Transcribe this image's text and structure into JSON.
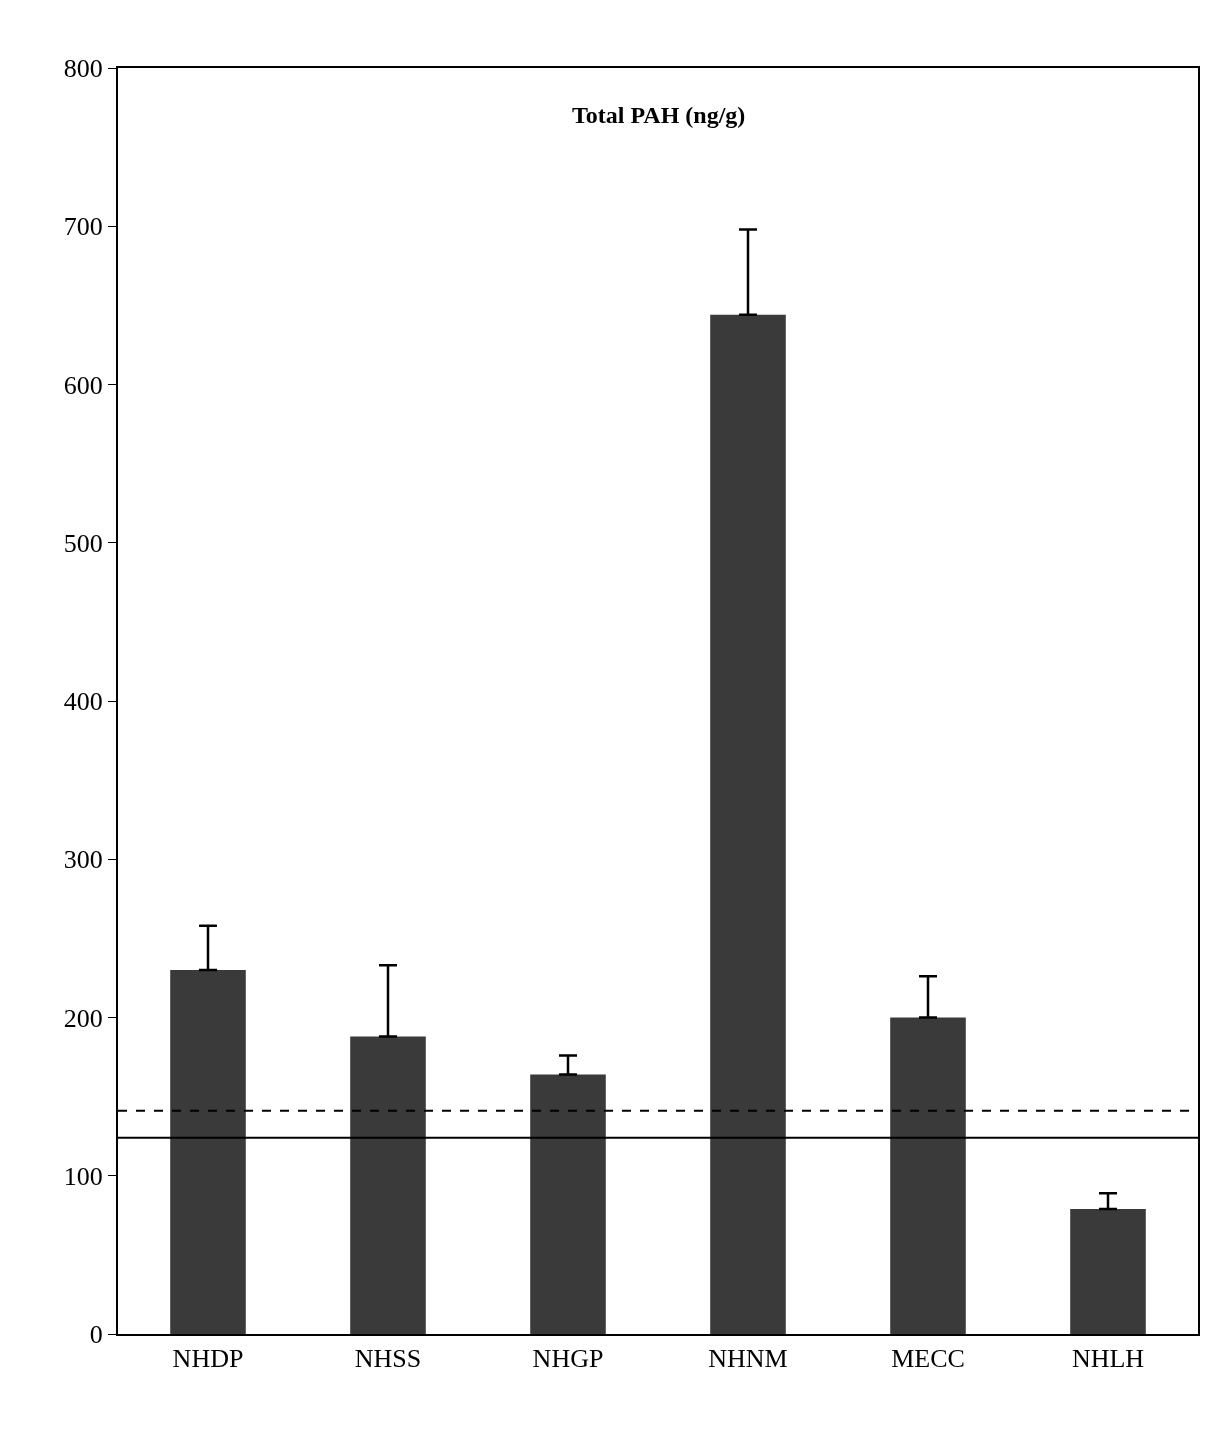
{
  "chart_data": {
    "type": "bar",
    "title": "Total PAH (ng/g)",
    "categories": [
      "NHDP",
      "NHSS",
      "NHGP",
      "NHNM",
      "MECC",
      "NHLH"
    ],
    "values": [
      230,
      188,
      164,
      644,
      200,
      79
    ],
    "errors": [
      [
        230,
        258
      ],
      [
        188,
        233
      ],
      [
        164,
        176
      ],
      [
        644,
        698
      ],
      [
        200,
        226
      ],
      [
        79,
        89
      ]
    ],
    "color": "#3a3a3a",
    "ylim": [
      0,
      800
    ],
    "yticks": [
      0,
      100,
      200,
      300,
      400,
      500,
      600,
      700,
      800
    ],
    "ref_lines": [
      {
        "axis": "y",
        "value": 141,
        "line_style": "dashed",
        "color": "#000000"
      },
      {
        "axis": "y",
        "value": 124,
        "line_style": "solid",
        "color": "#000000"
      }
    ]
  }
}
